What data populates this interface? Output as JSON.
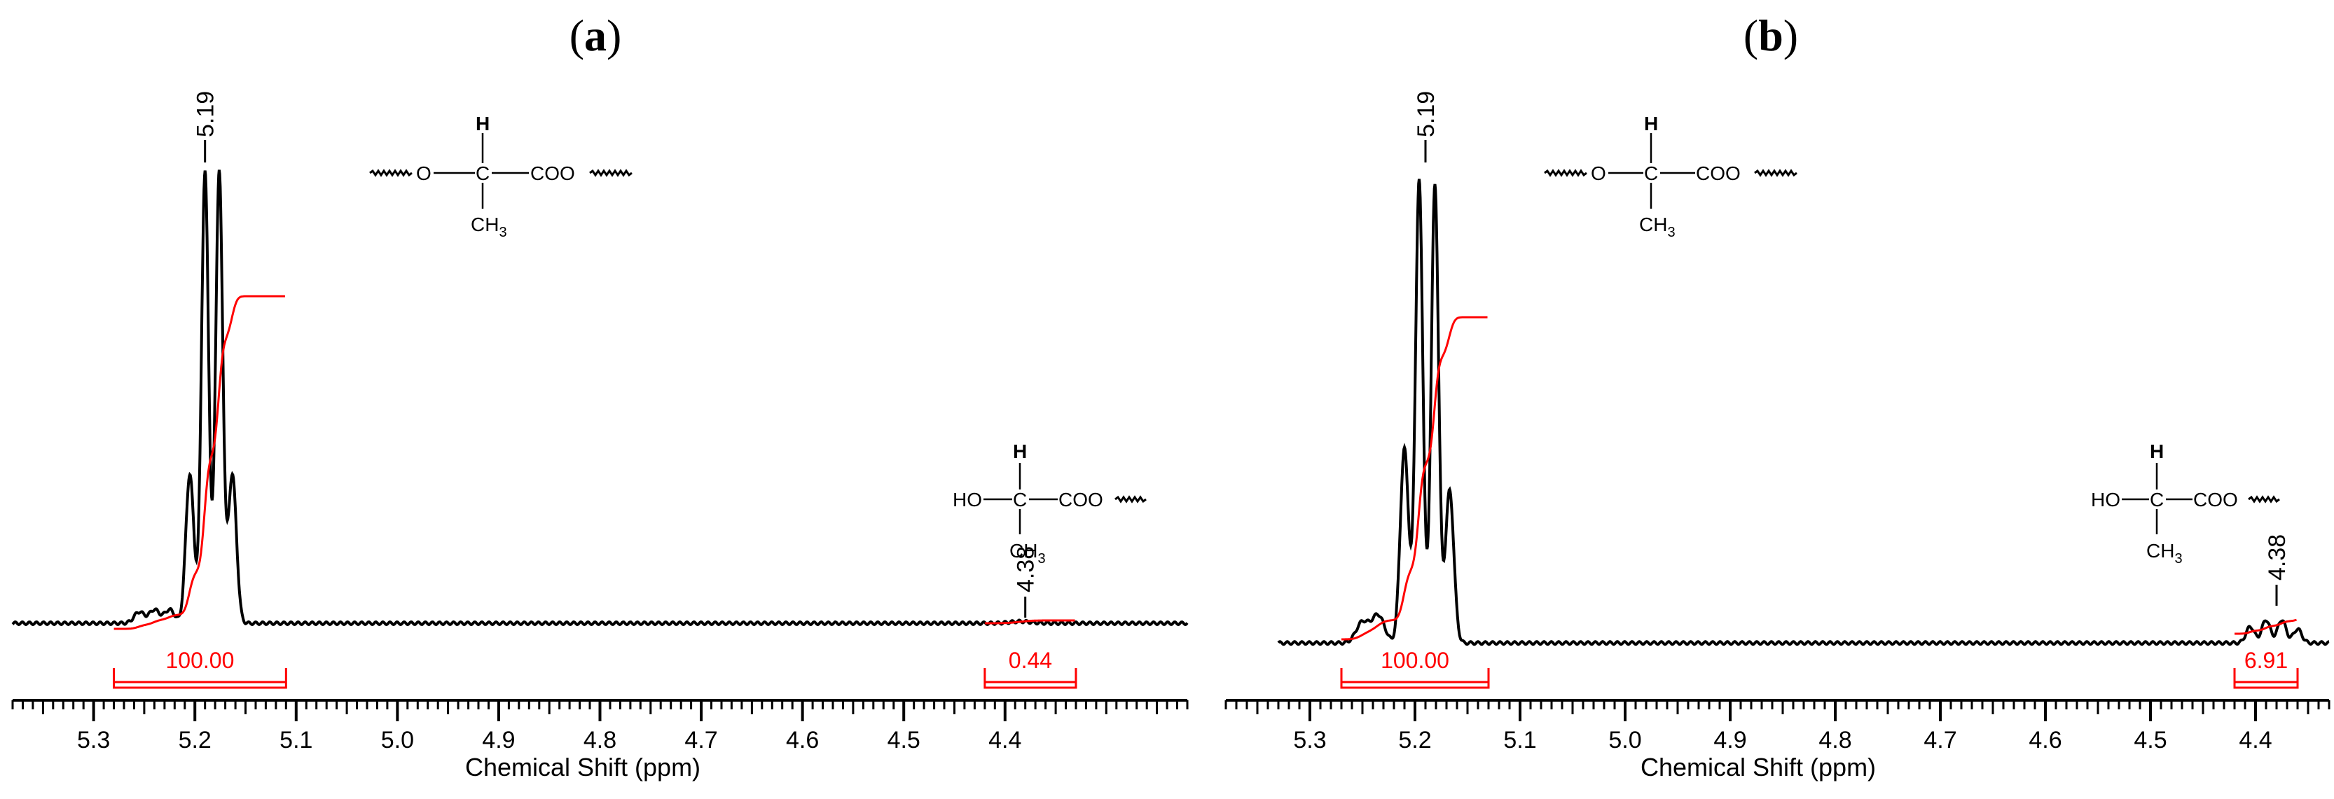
{
  "chart_data": [
    {
      "panel": "a",
      "panel_open": "(",
      "panel_letter": "a",
      "panel_close": ")",
      "type": "line",
      "title": "(a)",
      "xlabel": "Chemical Shift (ppm)",
      "ylabel": "",
      "xlim": [
        5.38,
        4.22
      ],
      "xlim_reversed": true,
      "ylim": [
        0,
        1
      ],
      "grid": false,
      "x_ticks": [
        5.3,
        5.2,
        5.1,
        5.0,
        4.9,
        4.8,
        4.7,
        4.6,
        4.5,
        4.4
      ],
      "x_tick_labels": [
        "5.3",
        "5.2",
        "5.1",
        "5.0",
        "4.9",
        "4.8",
        "4.7",
        "4.6",
        "4.5",
        "4.4"
      ],
      "spectrum": {
        "name": "1H NMR spectrum",
        "color": "#000000",
        "baseline": 0.0,
        "peaks": [
          {
            "x": 5.255,
            "height": 0.025,
            "width": 0.005
          },
          {
            "x": 5.24,
            "height": 0.03,
            "width": 0.005
          },
          {
            "x": 5.225,
            "height": 0.03,
            "width": 0.005
          },
          {
            "x": 5.205,
            "height": 0.33,
            "width": 0.004
          },
          {
            "x": 5.19,
            "height": 1.0,
            "width": 0.0035
          },
          {
            "x": 5.176,
            "height": 1.0,
            "width": 0.0035
          },
          {
            "x": 5.163,
            "height": 0.33,
            "width": 0.004
          },
          {
            "x": 4.385,
            "height": 0.004,
            "width": 0.01
          }
        ]
      },
      "peak_labels": [
        {
          "x": 5.19,
          "label": "5.19"
        },
        {
          "x": 4.38,
          "label": "4.38"
        }
      ],
      "integrals": [
        {
          "from": 5.28,
          "to": 5.11,
          "value_label": "100.00",
          "color": "#ff0000"
        },
        {
          "from": 4.42,
          "to": 4.33,
          "value_label": "0.44",
          "color": "#ff0000"
        }
      ],
      "annotations": {
        "structure_main": {
          "h": "H",
          "left": "O",
          "carbon": "C",
          "right": "COO",
          "below": "CH",
          "sub": "3"
        },
        "structure_end": {
          "h": "H",
          "left": "HO",
          "carbon": "C",
          "right": "COO",
          "below": "CH",
          "sub": "3"
        }
      }
    },
    {
      "panel": "b",
      "panel_open": "(",
      "panel_letter": "b",
      "panel_close": ")",
      "type": "line",
      "title": "(b)",
      "xlabel": "Chemical Shift (ppm)",
      "ylabel": "",
      "xlim": [
        5.38,
        4.33
      ],
      "xlim_reversed": true,
      "ylim": [
        0,
        1
      ],
      "grid": false,
      "x_ticks": [
        5.3,
        5.2,
        5.1,
        5.0,
        4.9,
        4.8,
        4.7,
        4.6,
        4.5,
        4.4
      ],
      "x_tick_labels": [
        "5.3",
        "5.2",
        "5.1",
        "5.0",
        "4.9",
        "4.8",
        "4.7",
        "4.6",
        "4.5",
        "4.4"
      ],
      "spectrum": {
        "name": "1H NMR spectrum",
        "color": "#000000",
        "baseline": -0.02,
        "peaks": [
          {
            "x": 5.25,
            "height": 0.045,
            "width": 0.006
          },
          {
            "x": 5.235,
            "height": 0.06,
            "width": 0.006
          },
          {
            "x": 5.21,
            "height": 0.42,
            "width": 0.004
          },
          {
            "x": 5.196,
            "height": 1.0,
            "width": 0.0035
          },
          {
            "x": 5.181,
            "height": 0.99,
            "width": 0.0035
          },
          {
            "x": 5.167,
            "height": 0.33,
            "width": 0.004
          },
          {
            "x": 4.405,
            "height": 0.035,
            "width": 0.004
          },
          {
            "x": 4.39,
            "height": 0.05,
            "width": 0.004
          },
          {
            "x": 4.375,
            "height": 0.05,
            "width": 0.004
          },
          {
            "x": 4.36,
            "height": 0.03,
            "width": 0.004
          }
        ]
      },
      "peak_labels": [
        {
          "x": 5.19,
          "label": "5.19"
        },
        {
          "x": 4.38,
          "label": "4.38"
        }
      ],
      "integrals": [
        {
          "from": 5.27,
          "to": 5.13,
          "value_label": "100.00",
          "color": "#ff0000"
        },
        {
          "from": 4.42,
          "to": 4.36,
          "value_label": "6.91",
          "color": "#ff0000"
        }
      ],
      "annotations": {
        "structure_main": {
          "h": "H",
          "left": "O",
          "carbon": "C",
          "right": "COO",
          "below": "CH",
          "sub": "3"
        },
        "structure_end": {
          "h": "H",
          "left": "HO",
          "carbon": "C",
          "right": "COO",
          "below": "CH",
          "sub": "3"
        }
      }
    }
  ]
}
